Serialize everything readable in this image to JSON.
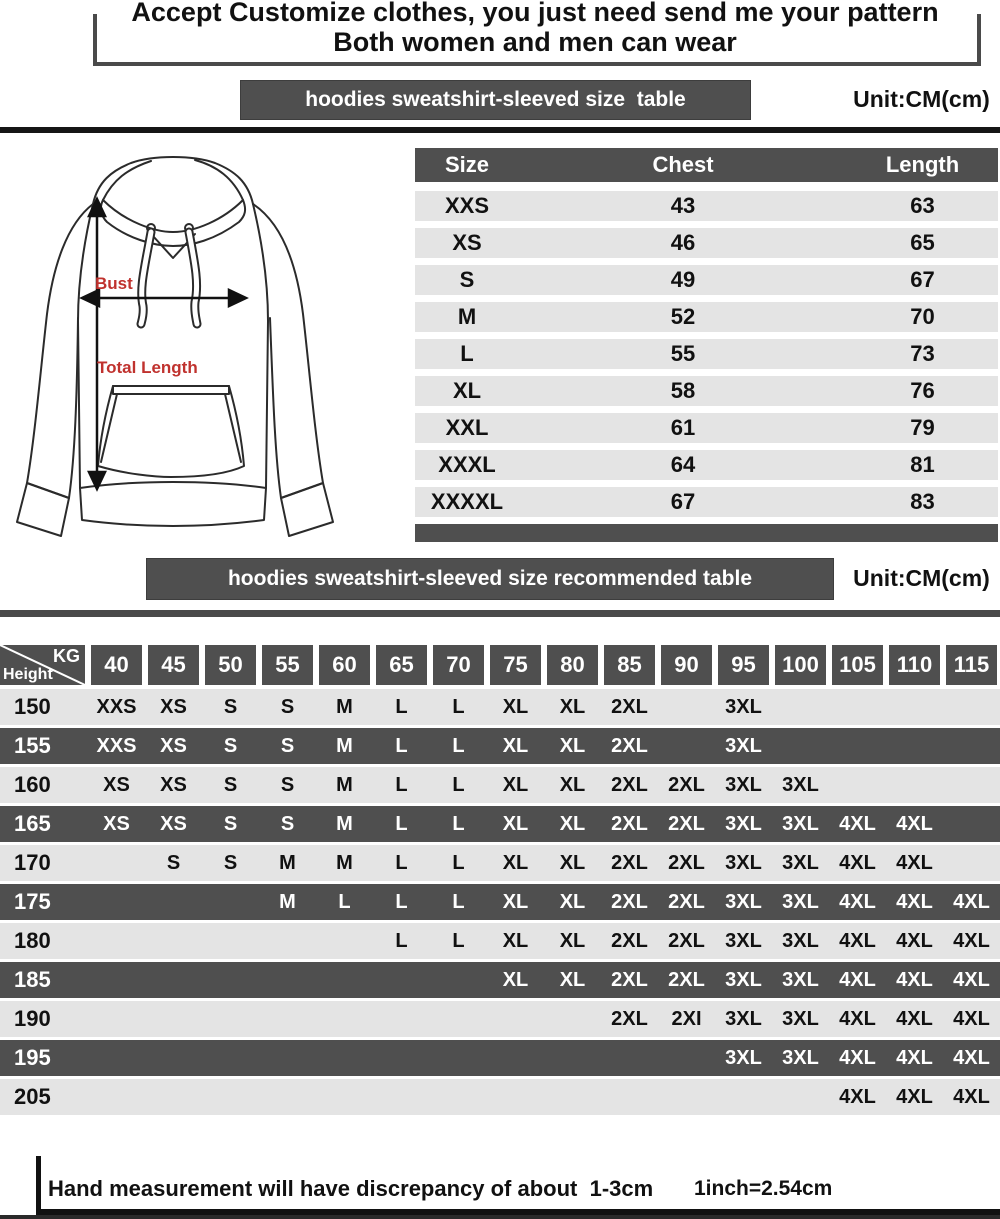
{
  "title": {
    "line1": "Accept Customize clothes, you just need send me your pattern",
    "line2": "Both women and men can wear"
  },
  "diagram": {
    "bust": "Bust",
    "total_length": "Total Length"
  },
  "size_table": {
    "banner": "hoodies sweatshirt-sleeved size  table",
    "unit": "Unit:CM(cm)",
    "columns": [
      "Size",
      "Chest",
      "Length"
    ],
    "rows": [
      {
        "size": "XXS",
        "chest": "43",
        "length": "63"
      },
      {
        "size": "XS",
        "chest": "46",
        "length": "65"
      },
      {
        "size": "S",
        "chest": "49",
        "length": "67"
      },
      {
        "size": "M",
        "chest": "52",
        "length": "70"
      },
      {
        "size": "L",
        "chest": "55",
        "length": "73"
      },
      {
        "size": "XL",
        "chest": "58",
        "length": "76"
      },
      {
        "size": "XXL",
        "chest": "61",
        "length": "79"
      },
      {
        "size": "XXXL",
        "chest": "64",
        "length": "81"
      },
      {
        "size": "XXXXL",
        "chest": "67",
        "length": "83"
      }
    ]
  },
  "matrix": {
    "banner": "hoodies sweatshirt-sleeved size recommended table",
    "unit": "Unit:CM(cm)",
    "corner_top": "KG",
    "corner_bottom": "Height",
    "weights": [
      "40",
      "45",
      "50",
      "55",
      "60",
      "65",
      "70",
      "75",
      "80",
      "85",
      "90",
      "95",
      "100",
      "105",
      "110",
      "115"
    ],
    "rows": [
      {
        "height": "150",
        "shade": "light",
        "cells": [
          "XXS",
          "XS",
          "S",
          "S",
          "M",
          "L",
          "L",
          "XL",
          "XL",
          "2XL",
          "",
          "3XL",
          "",
          "",
          "",
          ""
        ]
      },
      {
        "height": "155",
        "shade": "dark",
        "cells": [
          "XXS",
          "XS",
          "S",
          "S",
          "M",
          "L",
          "L",
          "XL",
          "XL",
          "2XL",
          "",
          "3XL",
          "",
          "",
          "",
          ""
        ]
      },
      {
        "height": "160",
        "shade": "light",
        "cells": [
          "XS",
          "XS",
          "S",
          "S",
          "M",
          "L",
          "L",
          "XL",
          "XL",
          "2XL",
          "2XL",
          "3XL",
          "3XL",
          "",
          "",
          ""
        ]
      },
      {
        "height": "165",
        "shade": "dark",
        "cells": [
          "XS",
          "XS",
          "S",
          "S",
          "M",
          "L",
          "L",
          "XL",
          "XL",
          "2XL",
          "2XL",
          "3XL",
          "3XL",
          "4XL",
          "4XL",
          ""
        ]
      },
      {
        "height": "170",
        "shade": "light",
        "cells": [
          "",
          "S",
          "S",
          "M",
          "M",
          "L",
          "L",
          "XL",
          "XL",
          "2XL",
          "2XL",
          "3XL",
          "3XL",
          "4XL",
          "4XL",
          ""
        ]
      },
      {
        "height": "175",
        "shade": "dark",
        "cells": [
          "",
          "",
          "",
          "M",
          "L",
          "L",
          "L",
          "XL",
          "XL",
          "2XL",
          "2XL",
          "3XL",
          "3XL",
          "4XL",
          "4XL",
          "4XL"
        ]
      },
      {
        "height": "180",
        "shade": "light",
        "cells": [
          "",
          "",
          "",
          "",
          "",
          "L",
          "L",
          "XL",
          "XL",
          "2XL",
          "2XL",
          "3XL",
          "3XL",
          "4XL",
          "4XL",
          "4XL"
        ]
      },
      {
        "height": "185",
        "shade": "dark",
        "cells": [
          "",
          "",
          "",
          "",
          "",
          "",
          "",
          "XL",
          "XL",
          "2XL",
          "2XL",
          "3XL",
          "3XL",
          "4XL",
          "4XL",
          "4XL"
        ]
      },
      {
        "height": "190",
        "shade": "light",
        "cells": [
          "",
          "",
          "",
          "",
          "",
          "",
          "",
          "",
          "",
          "2XL",
          "2XI",
          "3XL",
          "3XL",
          "4XL",
          "4XL",
          "4XL"
        ]
      },
      {
        "height": "195",
        "shade": "dark",
        "cells": [
          "",
          "",
          "",
          "",
          "",
          "",
          "",
          "",
          "",
          "",
          "",
          "3XL",
          "3XL",
          "4XL",
          "4XL",
          "4XL"
        ]
      },
      {
        "height": "205",
        "shade": "light",
        "cells": [
          "",
          "",
          "",
          "",
          "",
          "",
          "",
          "",
          "",
          "",
          "",
          "",
          "",
          "4XL",
          "4XL",
          "4XL"
        ]
      }
    ]
  },
  "footer": {
    "note": "Hand measurement will have discrepancy of about  1-3cm",
    "conversion": "1inch=2.54cm"
  },
  "colors": {
    "dark_gray": "#4f4f4f",
    "light_row_gray": "#e4e4e4",
    "accent_red": "#c0322e",
    "text_black": "#111111"
  }
}
